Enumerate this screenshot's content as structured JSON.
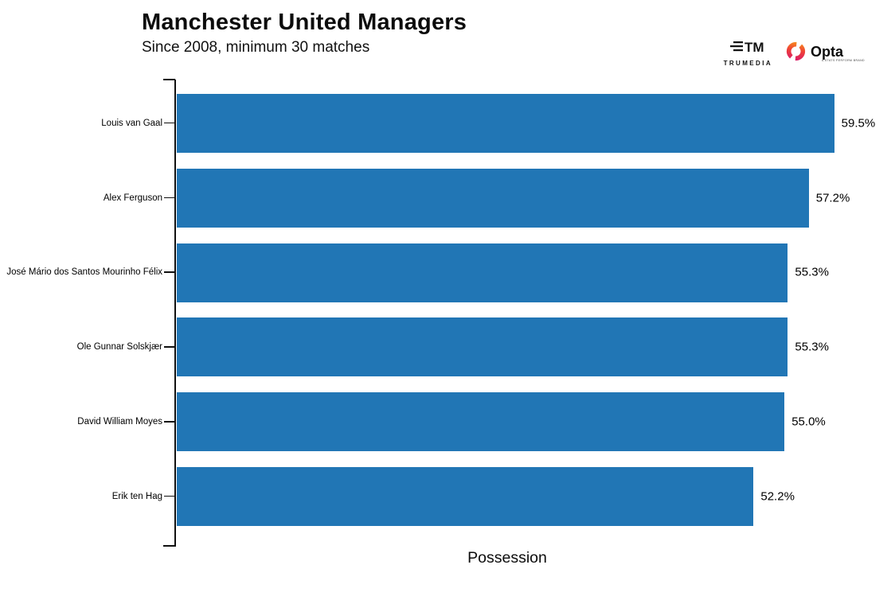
{
  "header": {
    "title": "Manchester United Managers",
    "subtitle": "Since 2008, minimum 30 matches"
  },
  "branding": {
    "trumedia_label": "TRUMEDIA",
    "trumedia_icon": "tm-monogram-with-lines",
    "opta_label": "Opta",
    "opta_sublabel": "A STATS PERFORM BRAND",
    "opta_ring_colors": [
      "#d6186e",
      "#ef4136",
      "#f7941d"
    ]
  },
  "chart_data": {
    "type": "bar",
    "orientation": "horizontal",
    "title": "Manchester United Managers",
    "subtitle": "Since 2008, minimum 30 matches",
    "categories": [
      "Louis van Gaal",
      "Alex Ferguson",
      "José Mário dos Santos Mourinho Félix",
      "Ole Gunnar Solskjær",
      "David William Moyes",
      "Erik ten Hag"
    ],
    "values": [
      59.5,
      57.2,
      55.3,
      55.3,
      55.0,
      52.2
    ],
    "value_labels": [
      "59.5%",
      "57.2%",
      "55.3%",
      "55.3%",
      "55.0%",
      "52.2%"
    ],
    "xlabel": "Possession",
    "ylabel": "",
    "xlim": [
      0,
      65
    ],
    "grid": false,
    "legend": false,
    "bar_color": "#2176b5",
    "axis_color": "#111111"
  }
}
